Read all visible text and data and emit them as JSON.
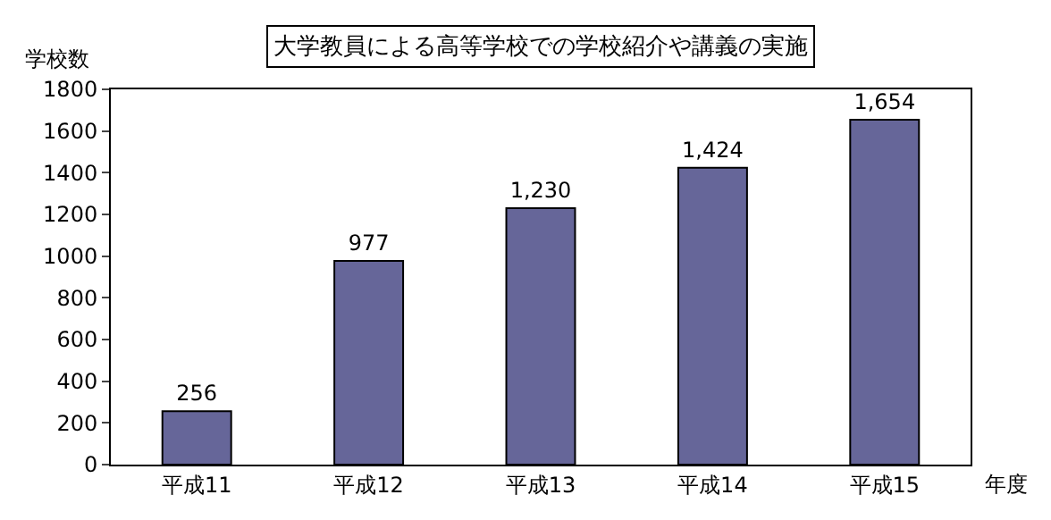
{
  "chart_data": {
    "type": "bar",
    "title": "大学教員による高等学校での学校紹介や講義の実施",
    "ylabel": "学校数",
    "xlabel": "年度",
    "categories": [
      "平成11",
      "平成12",
      "平成13",
      "平成14",
      "平成15"
    ],
    "values": [
      256,
      977,
      1230,
      1424,
      1654
    ],
    "value_labels": [
      "256",
      "977",
      "1,230",
      "1,424",
      "1,654"
    ],
    "color": "#666699",
    "ylim": [
      0,
      1800
    ],
    "yticks": [
      0,
      200,
      400,
      600,
      800,
      1000,
      1200,
      1400,
      1600,
      1800
    ]
  }
}
